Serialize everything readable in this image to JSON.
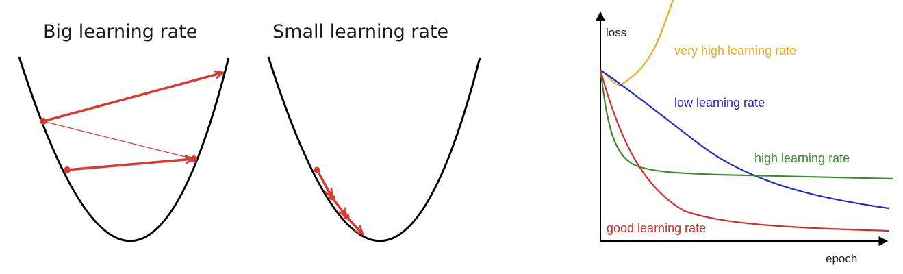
{
  "panels": {
    "big": {
      "title": "Big learning rate"
    },
    "small": {
      "title": "Small learning rate"
    }
  },
  "loss_chart": {
    "y_label": "loss",
    "x_label": "epoch",
    "curves": {
      "very_high": {
        "label": "very high learning rate",
        "color": "#f0a81e"
      },
      "low": {
        "label": "low learning rate",
        "color": "#2323c8"
      },
      "high": {
        "label": "high learning rate",
        "color": "#3a8a2a"
      },
      "good": {
        "label": "good learning rate",
        "color": "#d42a2a"
      }
    }
  },
  "colors": {
    "arrow": "#d93a32",
    "bowl": "#000000"
  }
}
